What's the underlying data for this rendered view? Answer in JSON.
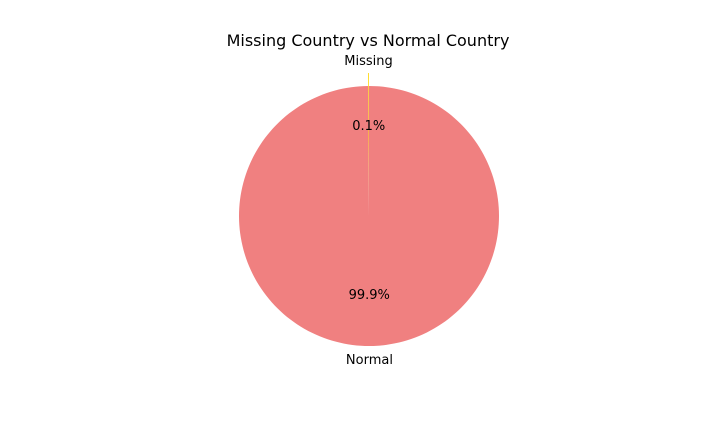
{
  "chart_data": {
    "type": "pie",
    "title": "Missing Country vs Normal Country",
    "categories": [
      "Missing",
      "Normal"
    ],
    "values": [
      0.1,
      99.9
    ],
    "value_labels": [
      "0.1%",
      "99.9%"
    ],
    "colors": [
      "#ffd700",
      "#f08080"
    ],
    "start_angle_deg": 90,
    "direction": "counterclockwise",
    "explode": [
      0.1,
      0.0
    ],
    "legend": "none"
  }
}
